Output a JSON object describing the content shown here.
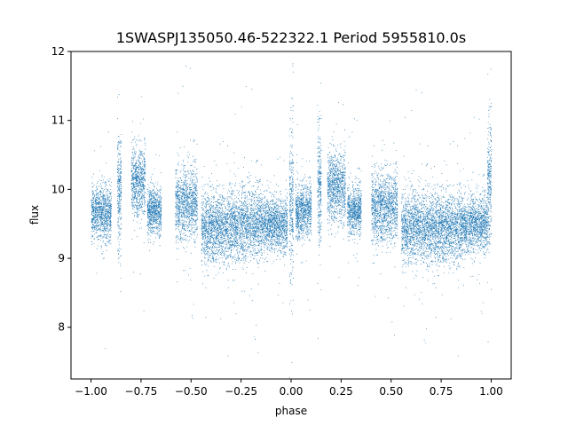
{
  "chart_data": {
    "type": "scatter",
    "title": "1SWASPJ135050.46-522322.1 Period 5955810.0s",
    "xlabel": "phase",
    "ylabel": "flux",
    "xlim": [
      -1.1,
      1.1
    ],
    "ylim": [
      7.25,
      12.0
    ],
    "x_ticks": [
      -1.0,
      -0.75,
      -0.5,
      -0.25,
      0.0,
      0.25,
      0.5,
      0.75,
      1.0
    ],
    "x_tick_labels": [
      "−1.00",
      "−0.75",
      "−0.50",
      "−0.25",
      "0.00",
      "0.25",
      "0.50",
      "0.75",
      "1.00"
    ],
    "y_ticks": [
      8,
      9,
      10,
      11,
      12
    ],
    "y_tick_labels": [
      "8",
      "9",
      "10",
      "11",
      "12"
    ],
    "grid": false,
    "marker_color": "#1f77b4",
    "series": [
      {
        "clusters": [
          {
            "x_range": [
              -1.0,
              -0.9
            ],
            "y_center": 9.65,
            "y_spread": 0.35
          },
          {
            "x_range": [
              -0.87,
              -0.85
            ],
            "y_center": 10.0,
            "y_spread": 0.75
          },
          {
            "x_range": [
              -0.8,
              -0.73
            ],
            "y_center": 10.1,
            "y_spread": 0.45
          },
          {
            "x_range": [
              -0.72,
              -0.65
            ],
            "y_center": 9.7,
            "y_spread": 0.3
          },
          {
            "x_range": [
              -0.58,
              -0.47
            ],
            "y_center": 9.8,
            "y_spread": 0.45
          },
          {
            "x_range": [
              -0.45,
              -0.3
            ],
            "y_center": 9.45,
            "y_spread": 0.45
          },
          {
            "x_range": [
              -0.3,
              -0.15
            ],
            "y_center": 9.5,
            "y_spread": 0.45
          },
          {
            "x_range": [
              -0.15,
              -0.02
            ],
            "y_center": 9.5,
            "y_spread": 0.35
          },
          {
            "x_range": [
              -0.01,
              0.01
            ],
            "y_center": 9.8,
            "y_spread": 1.0
          },
          {
            "x_range": [
              0.02,
              0.1
            ],
            "y_center": 9.7,
            "y_spread": 0.35
          },
          {
            "x_range": [
              0.13,
              0.15
            ],
            "y_center": 10.0,
            "y_spread": 0.75
          },
          {
            "x_range": [
              0.18,
              0.27
            ],
            "y_center": 10.05,
            "y_spread": 0.45
          },
          {
            "x_range": [
              0.28,
              0.35
            ],
            "y_center": 9.7,
            "y_spread": 0.3
          },
          {
            "x_range": [
              0.4,
              0.53
            ],
            "y_center": 9.75,
            "y_spread": 0.45
          },
          {
            "x_range": [
              0.55,
              0.7
            ],
            "y_center": 9.45,
            "y_spread": 0.45
          },
          {
            "x_range": [
              0.7,
              0.85
            ],
            "y_center": 9.45,
            "y_spread": 0.45
          },
          {
            "x_range": [
              0.85,
              0.98
            ],
            "y_center": 9.5,
            "y_spread": 0.35
          },
          {
            "x_range": [
              0.98,
              1.0
            ],
            "y_center": 10.1,
            "y_spread": 0.8
          }
        ]
      }
    ]
  }
}
